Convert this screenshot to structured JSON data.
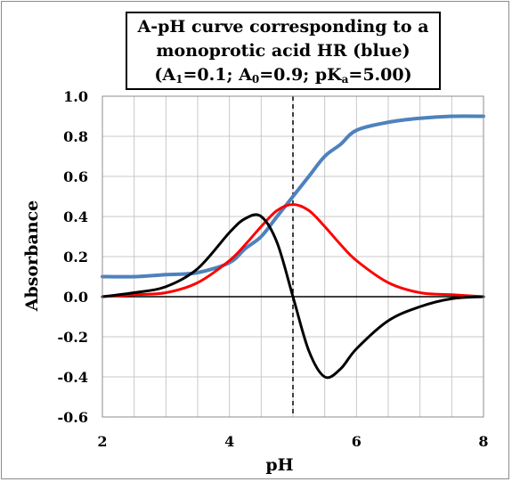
{
  "title": {
    "line1": "A-pH curve corresponding to a",
    "line2": "monoprotic acid HR (blue)",
    "line3_a": "(A",
    "line3_sub1": "1",
    "line3_b": "=0.1; A",
    "line3_sub2": "0",
    "line3_c": "=0.9; pK",
    "line3_sub3": "a",
    "line3_d": "=5.00)"
  },
  "chart_data": {
    "type": "line",
    "xlabel": "pH",
    "ylabel": "Absorbance",
    "xlim": [
      2,
      8
    ],
    "ylim": [
      -0.6,
      1.0
    ],
    "xticks": [
      "2",
      "4",
      "6",
      "8"
    ],
    "yticks": [
      "1.0",
      "0.8",
      "0.6",
      "0.4",
      "0.2",
      "0.0",
      "-0.2",
      "-0.4",
      "-0.6"
    ],
    "grid": true,
    "vline_x": 5.0,
    "x": [
      2.0,
      2.5,
      3.0,
      3.5,
      4.0,
      4.25,
      4.5,
      4.75,
      5.0,
      5.25,
      5.5,
      5.75,
      6.0,
      6.5,
      7.0,
      7.5,
      8.0
    ],
    "series": [
      {
        "color": "#4f81bd",
        "values": [
          0.1,
          0.1,
          0.11,
          0.12,
          0.17,
          0.24,
          0.3,
          0.4,
          0.5,
          0.6,
          0.7,
          0.76,
          0.83,
          0.87,
          0.89,
          0.9,
          0.9
        ]
      },
      {
        "color": "#ff0000",
        "values": [
          0.0,
          0.01,
          0.02,
          0.07,
          0.18,
          0.26,
          0.35,
          0.43,
          0.46,
          0.43,
          0.35,
          0.26,
          0.18,
          0.07,
          0.02,
          0.01,
          0.0
        ]
      },
      {
        "color": "#000000",
        "values": [
          0.0,
          0.02,
          0.05,
          0.14,
          0.32,
          0.39,
          0.4,
          0.27,
          0.0,
          -0.27,
          -0.4,
          -0.36,
          -0.26,
          -0.12,
          -0.05,
          -0.01,
          0.0
        ]
      }
    ]
  }
}
